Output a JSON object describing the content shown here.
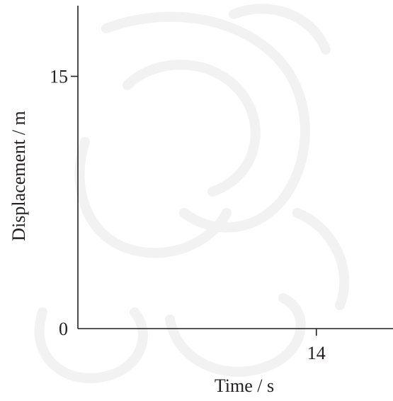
{
  "chart_data": {
    "type": "line",
    "title": "",
    "xlabel": "Time / s",
    "ylabel": "Displacement / m",
    "x_ticks": [
      {
        "value": 14,
        "label": "14"
      }
    ],
    "y_ticks": [
      {
        "value": 0,
        "label": "0"
      },
      {
        "value": 15,
        "label": "15"
      }
    ],
    "xlim": [
      0,
      18.5
    ],
    "ylim": [
      0,
      19.2
    ],
    "grid": false,
    "series": []
  },
  "colors": {
    "axis": "#231f20",
    "watermark": "#f2f2f2"
  }
}
